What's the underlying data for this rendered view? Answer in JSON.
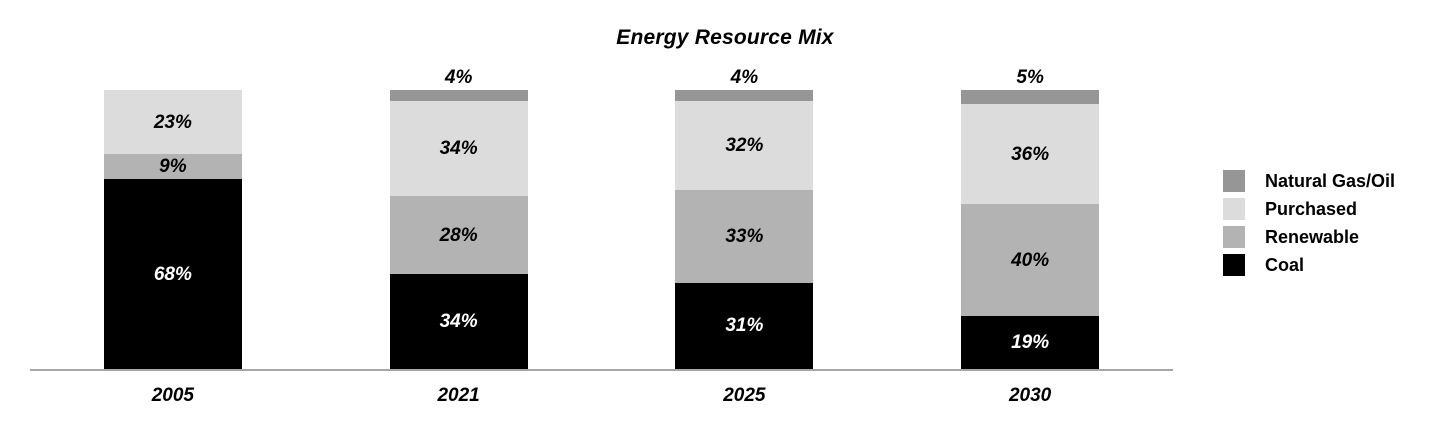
{
  "chart_data": {
    "type": "bar",
    "stacked": true,
    "title": "Energy Resource Mix",
    "categories": [
      "2005",
      "2021",
      "2025",
      "2030"
    ],
    "series": [
      {
        "name": "Natural Gas/Oil",
        "color": "#969696",
        "values": [
          0,
          4,
          4,
          5
        ]
      },
      {
        "name": "Purchased",
        "color": "#DCDCDC",
        "values": [
          23,
          34,
          32,
          36
        ]
      },
      {
        "name": "Renewable",
        "color": "#B3B3B3",
        "values": [
          9,
          28,
          33,
          40
        ]
      },
      {
        "name": "Coal",
        "color": "#000000",
        "values": [
          68,
          34,
          31,
          19
        ]
      }
    ],
    "value_suffix": "%",
    "ylim": [
      0,
      100
    ],
    "grid": false,
    "legend_position": "right",
    "axis_line_color": "#A6A6A6",
    "segment_text_dark": "#000000",
    "segment_text_light": "#FFFFFF"
  }
}
